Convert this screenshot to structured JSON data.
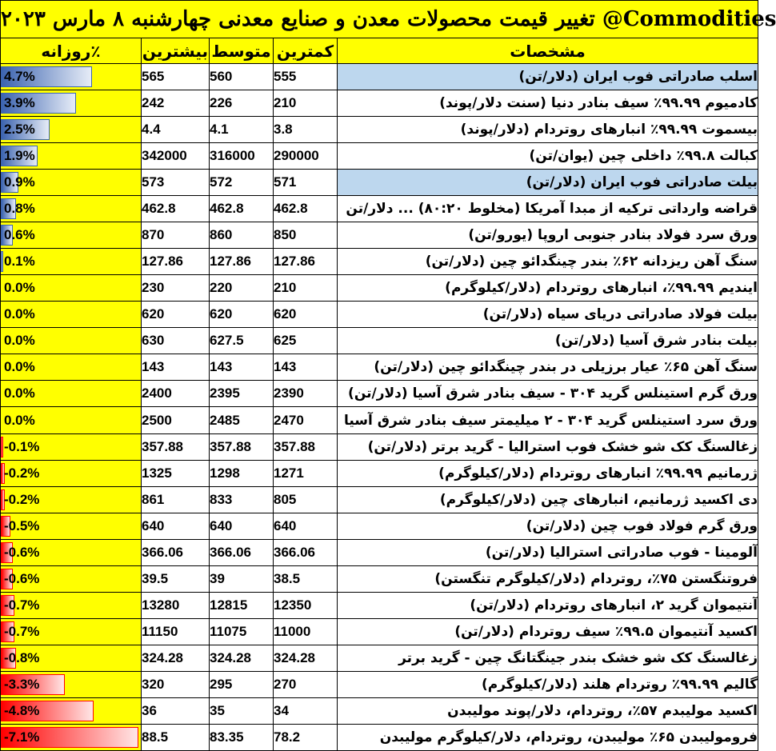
{
  "title": "تغییر قیمت محصولات معدن و صنایع معدنی چهارشنبه ۸ مارس ۲۰۲۳ @Commodities",
  "headers": {
    "change": "روزانه٪",
    "max": "بیشترین",
    "avg": "متوسط",
    "min": "کمترین",
    "name": "مشخصات"
  },
  "colors": {
    "sheet_yellow": "#ffff00",
    "highlight_blue": "#bdd7ee",
    "positive_bar": "#3c64b0",
    "negative_bar": "#ff0000"
  },
  "rows": [
    {
      "name": "اسلب صادراتی فوب ایران (دلار/تن)",
      "min": "555",
      "avg": "560",
      "max": "565",
      "change": "4.7%",
      "value": 4.7,
      "highlight": true
    },
    {
      "name": "کادمیوم ۹۹.۹۹٪ سیف بنادر دنیا (سنت دلار/پوند)",
      "min": "210",
      "avg": "226",
      "max": "242",
      "change": "3.9%",
      "value": 3.9,
      "highlight": false
    },
    {
      "name": "بیسموت ۹۹.۹۹٪ انبارهای روتردام (دلار/پوند)",
      "min": "3.8",
      "avg": "4.1",
      "max": "4.4",
      "change": "2.5%",
      "value": 2.5,
      "highlight": false
    },
    {
      "name": "کبالت ۹۹.۸٪ داخلی چین (یوان/تن)",
      "min": "290000",
      "avg": "316000",
      "max": "342000",
      "change": "1.9%",
      "value": 1.9,
      "highlight": false
    },
    {
      "name": "بیلت صادراتی فوب ایران (دلار/تن)",
      "min": "571",
      "avg": "572",
      "max": "573",
      "change": "0.9%",
      "value": 0.9,
      "highlight": true
    },
    {
      "name": "قراضه وارداتی ترکیه از مبدا آمریکا (مخلوط ۸۰:۲۰) ... دلار/تن",
      "min": "462.8",
      "avg": "462.8",
      "max": "462.8",
      "change": "0.8%",
      "value": 0.8,
      "highlight": false
    },
    {
      "name": "ورق سرد فولاد  بنادر جنوبی اروپا (یورو/تن)",
      "min": "850",
      "avg": "860",
      "max": "870",
      "change": "0.6%",
      "value": 0.6,
      "highlight": false
    },
    {
      "name": "سنگ آهن ریزدانه ۶۲٪ بندر چینگدائو چین (دلار/تن)",
      "min": "127.86",
      "avg": "127.86",
      "max": "127.86",
      "change": "0.1%",
      "value": 0.1,
      "highlight": false
    },
    {
      "name": "ایندیم ۹۹.۹۹٪، انبارهای روتردام (دلار/کیلوگرم)",
      "min": "210",
      "avg": "220",
      "max": "230",
      "change": "0.0%",
      "value": 0.0,
      "highlight": false
    },
    {
      "name": "بیلت فولاد صادراتی دریای سیاه (دلار/تن)",
      "min": "620",
      "avg": "620",
      "max": "620",
      "change": "0.0%",
      "value": 0.0,
      "highlight": false
    },
    {
      "name": "بیلت بنادر شرق آسیا (دلار/تن)",
      "min": "625",
      "avg": "627.5",
      "max": "630",
      "change": "0.0%",
      "value": 0.0,
      "highlight": false
    },
    {
      "name": "سنگ آهن ۶۵٪ عیار برزیلی در بندر چینگدائو چین (دلار/تن)",
      "min": "143",
      "avg": "143",
      "max": "143",
      "change": "0.0%",
      "value": 0.0,
      "highlight": false
    },
    {
      "name": "ورق گرم استینلس گرید ۳۰۴ - سیف بنادر شرق آسیا (دلار/تن)",
      "min": "2390",
      "avg": "2395",
      "max": "2400",
      "change": "0.0%",
      "value": 0.0,
      "highlight": false
    },
    {
      "name": "ورق سرد استینلس گرید ۳۰۴ - ۲ میلیمتر سیف بنادر شرق آسیا",
      "min": "2470",
      "avg": "2485",
      "max": "2500",
      "change": "0.0%",
      "value": 0.0,
      "highlight": false
    },
    {
      "name": "زغالسنگ کک شو خشک فوب استرالیا - گرید برتر (دلار/تن)",
      "min": "357.88",
      "avg": "357.88",
      "max": "357.88",
      "change": "-0.1%",
      "value": -0.1,
      "highlight": false
    },
    {
      "name": "ژرمانیم ۹۹.۹۹٪ انبارهای روتردام (دلار/کیلوگرم)",
      "min": "1271",
      "avg": "1298",
      "max": "1325",
      "change": "-0.2%",
      "value": -0.2,
      "highlight": false
    },
    {
      "name": "دی اکسید ژرمانیم، انبارهای چین (دلار/کیلوگرم)",
      "min": "805",
      "avg": "833",
      "max": "861",
      "change": "-0.2%",
      "value": -0.2,
      "highlight": false
    },
    {
      "name": "ورق گرم فولاد فوب چین (دلار/تن)",
      "min": "640",
      "avg": "640",
      "max": "640",
      "change": "-0.5%",
      "value": -0.5,
      "highlight": false
    },
    {
      "name": "آلومینا - فوب صادراتی استرالیا (دلار/تن)",
      "min": "366.06",
      "avg": "366.06",
      "max": "366.06",
      "change": "-0.6%",
      "value": -0.6,
      "highlight": false
    },
    {
      "name": "فروتنگستن ۷۵٪، روتردام (دلار/کیلوگرم تنگستن)",
      "min": "38.5",
      "avg": "39",
      "max": "39.5",
      "change": "-0.6%",
      "value": -0.6,
      "highlight": false
    },
    {
      "name": "آنتیموان گرید ۲، انبارهای روتردام (دلار/تن)",
      "min": "12350",
      "avg": "12815",
      "max": "13280",
      "change": "-0.7%",
      "value": -0.7,
      "highlight": false
    },
    {
      "name": "اکسید آنتیموان ۹۹.۵٪ سیف روتردام (دلار/تن)",
      "min": "11000",
      "avg": "11075",
      "max": "11150",
      "change": "-0.7%",
      "value": -0.7,
      "highlight": false
    },
    {
      "name": "زغالسنگ کک شو خشک بندر جینگتانگ چین - گرید برتر",
      "min": "324.28",
      "avg": "324.28",
      "max": "324.28",
      "change": "-0.8%",
      "value": -0.8,
      "highlight": false
    },
    {
      "name": "گالیم ۹۹.۹۹٪ روتردام هلند (دلار/کیلوگرم)",
      "min": "270",
      "avg": "295",
      "max": "320",
      "change": "-3.3%",
      "value": -3.3,
      "highlight": false
    },
    {
      "name": "اکسید مولیبدم ۵۷٪، روتردام، دلار/پوند مولیبدن",
      "min": "34",
      "avg": "35",
      "max": "36",
      "change": "-4.8%",
      "value": -4.8,
      "highlight": false
    },
    {
      "name": "فرومولیبدن ۶۵٪ مولیبدن، روتردام، دلار/کیلوگرم مولیبدن",
      "min": "78.2",
      "avg": "83.35",
      "max": "88.5",
      "change": "-7.1%",
      "value": -7.1,
      "highlight": false
    }
  ]
}
